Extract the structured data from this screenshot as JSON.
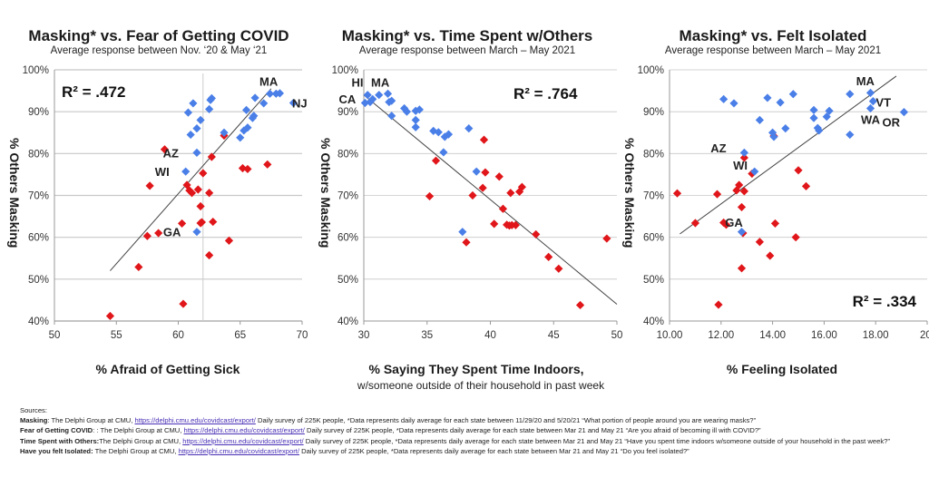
{
  "colors": {
    "high_masking": "#4a7fe8",
    "low_masking": "#e0161a",
    "trendline": "#444444",
    "grid": "#c8c8c8"
  },
  "chart_data": [
    {
      "type": "scatter",
      "title": "Masking* vs. Fear of Getting COVID",
      "subtitle": "Average response between Nov. ‘20 & May ‘21",
      "xlabel": "% Afraid of Getting Sick",
      "xsublabel": "",
      "ylabel": "% Others Masking",
      "xlim": [
        50,
        70
      ],
      "ylim": [
        40,
        100
      ],
      "xticks": [
        50,
        55,
        60,
        65,
        70
      ],
      "xtick_labels": [
        "50",
        "55",
        "60",
        "65",
        "70"
      ],
      "yticks": [
        40,
        50,
        60,
        70,
        80,
        90,
        100
      ],
      "ytick_labels": [
        "40%",
        "50%",
        "60%",
        "70%",
        "80%",
        "90%",
        "100%"
      ],
      "grid": "horizontal",
      "reference_vline_x": 62,
      "r2_label": "R² = .472",
      "r2_position": "top-left",
      "trendline": {
        "x": [
          54.5,
          67.5
        ],
        "y": [
          52,
          95.5
        ]
      },
      "series": [
        {
          "name": "high",
          "color": "#4a7fe8",
          "points": [
            [
              60.8,
              89.8
            ],
            [
              61.2,
              92
            ],
            [
              61,
              84.5
            ],
            [
              61.5,
              86
            ],
            [
              61.8,
              88
            ],
            [
              62.6,
              92.8
            ],
            [
              62.7,
              93.2
            ],
            [
              62.5,
              90.6
            ],
            [
              63.7,
              85
            ],
            [
              65.3,
              85.5
            ],
            [
              65.6,
              86.2
            ],
            [
              65,
              83.8
            ],
            [
              65.5,
              90.4
            ],
            [
              66,
              88.5
            ],
            [
              66.1,
              89
            ],
            [
              66.2,
              93.3
            ],
            [
              66.9,
              92
            ],
            [
              67.4,
              94.3
            ],
            [
              67.9,
              94.3
            ],
            [
              68.2,
              94.4
            ],
            [
              69.3,
              92.1
            ],
            [
              61.5,
              80.2
            ],
            [
              60.6,
              75.7
            ],
            [
              61.5,
              61.3
            ]
          ]
        },
        {
          "name": "low",
          "color": "#e0161a",
          "points": [
            [
              58.9,
              81
            ],
            [
              63.7,
              84.3
            ],
            [
              62.7,
              79.2
            ],
            [
              62,
              75.3
            ],
            [
              65.2,
              76.5
            ],
            [
              65.6,
              76.3
            ],
            [
              67.2,
              77.4
            ],
            [
              57.7,
              72.3
            ],
            [
              60.7,
              72.5
            ],
            [
              60.9,
              71.2
            ],
            [
              61.1,
              70.6
            ],
            [
              61.6,
              71.4
            ],
            [
              62.5,
              70.6
            ],
            [
              61.8,
              67.4
            ],
            [
              60.3,
              63.3
            ],
            [
              61.8,
              63.4
            ],
            [
              61.9,
              63.6
            ],
            [
              62.8,
              63.7
            ],
            [
              57.5,
              60.3
            ],
            [
              58.4,
              61
            ],
            [
              64.1,
              59.2
            ],
            [
              62.5,
              55.7
            ],
            [
              56.8,
              52.9
            ],
            [
              60.4,
              44.1
            ],
            [
              54.5,
              41.2
            ]
          ]
        }
      ],
      "point_labels": [
        {
          "text": "MA",
          "x": 67.3,
          "y": 97.3
        },
        {
          "text": "NJ",
          "x": 69.8,
          "y": 92.1
        },
        {
          "text": "AZ",
          "x": 59.4,
          "y": 80.2
        },
        {
          "text": "WI",
          "x": 58.7,
          "y": 75.7
        },
        {
          "text": "GA",
          "x": 59.5,
          "y": 61.3
        }
      ]
    },
    {
      "type": "scatter",
      "title": "Masking* vs. Time Spent w/Others",
      "subtitle": "Average response between March – May 2021",
      "xlabel": "% Saying They Spent Time Indoors,",
      "xsublabel": "w/someone outside of their household in past week",
      "ylabel": "% Others Masking",
      "xlim": [
        30,
        50
      ],
      "ylim": [
        40,
        100
      ],
      "xticks": [
        30,
        35,
        40,
        45,
        50
      ],
      "xtick_labels": [
        "30",
        "35",
        "40",
        "45",
        "50"
      ],
      "yticks": [
        40,
        50,
        60,
        70,
        80,
        90,
        100
      ],
      "ytick_labels": [
        "40%",
        "50%",
        "60%",
        "70%",
        "80%",
        "90%",
        "100%"
      ],
      "grid": "horizontal",
      "r2_label": "R² = .764",
      "r2_position": "top-right",
      "trendline": {
        "x": [
          30,
          50
        ],
        "y": [
          94,
          44
        ]
      },
      "series": [
        {
          "name": "high",
          "color": "#4a7fe8",
          "points": [
            [
              30.1,
              92.1
            ],
            [
              30.3,
              94
            ],
            [
              30.5,
              92.3
            ],
            [
              30.7,
              93
            ],
            [
              31.2,
              94
            ],
            [
              31.9,
              94.3
            ],
            [
              32,
              92.3
            ],
            [
              32.2,
              92.6
            ],
            [
              32.2,
              89
            ],
            [
              33.2,
              90.8
            ],
            [
              33.4,
              90
            ],
            [
              34.1,
              90.2
            ],
            [
              34.4,
              90.5
            ],
            [
              34.1,
              88
            ],
            [
              34.1,
              86.3
            ],
            [
              35.5,
              85.4
            ],
            [
              35.9,
              85.1
            ],
            [
              36.4,
              84
            ],
            [
              36.7,
              84.6
            ],
            [
              38.3,
              86
            ],
            [
              36.3,
              80.3
            ],
            [
              38.9,
              75.7
            ],
            [
              37.8,
              61.3
            ]
          ]
        },
        {
          "name": "low",
          "color": "#e0161a",
          "points": [
            [
              39.5,
              83.3
            ],
            [
              35.7,
              78.3
            ],
            [
              39.6,
              75.5
            ],
            [
              40.7,
              74.5
            ],
            [
              42.5,
              72
            ],
            [
              42.3,
              70.9
            ],
            [
              41.6,
              70.6
            ],
            [
              39.4,
              71.8
            ],
            [
              38.6,
              70
            ],
            [
              35.2,
              69.8
            ],
            [
              41,
              66.8
            ],
            [
              40.3,
              63.2
            ],
            [
              41.3,
              63
            ],
            [
              41.5,
              62.8
            ],
            [
              41.7,
              62.9
            ],
            [
              42,
              62.9
            ],
            [
              43.6,
              60.7
            ],
            [
              49.2,
              59.7
            ],
            [
              38.1,
              58.8
            ],
            [
              44.6,
              55.3
            ],
            [
              45.4,
              52.5
            ],
            [
              47.1,
              43.8
            ]
          ]
        }
      ],
      "point_labels": [
        {
          "text": "HI",
          "x": 29.5,
          "y": 97.1
        },
        {
          "text": "MA",
          "x": 31.3,
          "y": 97.1
        },
        {
          "text": "CA",
          "x": 28.7,
          "y": 93.1
        }
      ]
    },
    {
      "type": "scatter",
      "title": "Masking* vs. Felt Isolated",
      "subtitle": "Average response between March – May 2021",
      "xlabel": "% Feeling Isolated",
      "xsublabel": "",
      "ylabel": "% Others Masking",
      "xlim": [
        10,
        20
      ],
      "ylim": [
        40,
        100
      ],
      "xticks": [
        10,
        12,
        14,
        16,
        18,
        20
      ],
      "xtick_labels": [
        "10.00",
        "12.00",
        "14.00",
        "16.00",
        "18.00",
        "20."
      ],
      "yticks": [
        40,
        50,
        60,
        70,
        80,
        90,
        100
      ],
      "ytick_labels": [
        "40%",
        "50%",
        "60%",
        "70%",
        "80%",
        "90%",
        "100%"
      ],
      "grid": "horizontal",
      "r2_label": "R² = .334",
      "r2_position": "bottom-right",
      "trendline": {
        "x": [
          10.4,
          18.8
        ],
        "y": [
          60.8,
          98.5
        ]
      },
      "series": [
        {
          "name": "high",
          "color": "#4a7fe8",
          "points": [
            [
              12.1,
              93
            ],
            [
              12.5,
              92
            ],
            [
              13.5,
              88
            ],
            [
              13.8,
              93.3
            ],
            [
              14.3,
              92.2
            ],
            [
              14.8,
              94.2
            ],
            [
              14,
              85
            ],
            [
              14.05,
              84
            ],
            [
              14.5,
              86
            ],
            [
              15.6,
              90.4
            ],
            [
              15.6,
              88.5
            ],
            [
              15.75,
              86.1
            ],
            [
              15.8,
              85.5
            ],
            [
              16.2,
              90.2
            ],
            [
              16.1,
              88.8
            ],
            [
              17,
              94.2
            ],
            [
              17,
              84.5
            ],
            [
              17.8,
              94.5
            ],
            [
              17.9,
              92.5
            ],
            [
              17.8,
              90.8
            ],
            [
              19.1,
              89.9
            ],
            [
              12.9,
              80.2
            ],
            [
              13.3,
              75.7
            ],
            [
              12.8,
              61.3
            ]
          ]
        },
        {
          "name": "low",
          "color": "#e0161a",
          "points": [
            [
              14.05,
              84.2
            ],
            [
              12.9,
              79
            ],
            [
              13.2,
              75.2
            ],
            [
              15,
              76
            ],
            [
              15.3,
              72.2
            ],
            [
              12.7,
              72.5
            ],
            [
              12.6,
              71.2
            ],
            [
              12.9,
              71
            ],
            [
              10.3,
              70.5
            ],
            [
              11.85,
              70.3
            ],
            [
              12.8,
              67.2
            ],
            [
              11,
              63.4
            ],
            [
              12.1,
              63.5
            ],
            [
              12.2,
              63
            ],
            [
              14.1,
              63.3
            ],
            [
              12.85,
              61
            ],
            [
              14.9,
              60
            ],
            [
              13.5,
              58.9
            ],
            [
              13.9,
              55.6
            ],
            [
              12.8,
              52.6
            ],
            [
              11.9,
              43.9
            ]
          ]
        }
      ],
      "point_labels": [
        {
          "text": "MA",
          "x": 17.6,
          "y": 97.4
        },
        {
          "text": "VT",
          "x": 18.3,
          "y": 92.3
        },
        {
          "text": "WA",
          "x": 17.8,
          "y": 88.2
        },
        {
          "text": "OR",
          "x": 18.6,
          "y": 87.5
        },
        {
          "text": "AZ",
          "x": 11.9,
          "y": 81.4
        },
        {
          "text": "WI",
          "x": 12.75,
          "y": 77.3
        },
        {
          "text": "GA",
          "x": 12.5,
          "y": 63.6
        }
      ]
    }
  ],
  "sources": {
    "heading": "Sources:",
    "lines": [
      {
        "label": "Masking",
        "sep": ": The Delphi Group at CMU, ",
        "link": "https://delphi.cmu.edu/covidcast/export/",
        "text": " Daily survey of 225K people, *Data represents daily average for each state between 11/29/20 and 5/20/21 “What portion of people around you are wearing masks?”"
      },
      {
        "label": "Fear of Getting COVID",
        "sep": ": : The Delphi Group at CMU, ",
        "link": "https://delphi.cmu.edu/covidcast/export/",
        "text": " Daily survey of 225K people, *Data represents daily average for each state between Mar 21  and May 21 “Are you afraid of becoming ill with COVID?”"
      },
      {
        "label": "Time  Spent with Others:",
        "sep": "The Delphi Group at CMU, ",
        "link": "https://delphi.cmu.edu/covidcast/export/",
        "text": " Daily survey of 225K people, *Data represents daily average for each state between Mar 21  and May 21 “Have you spent time indoors w/someone outside of your household in the past week?”"
      },
      {
        "label": "Have you felt Isolated:",
        "sep": " The Delphi Group at CMU, ",
        "link": "https://delphi.cmu.edu/covidcast/export/",
        "text": " Daily survey of 225K people, *Data represents daily average for each state between Mar 21  and May 21 “Do you feel isolated?”"
      }
    ]
  }
}
